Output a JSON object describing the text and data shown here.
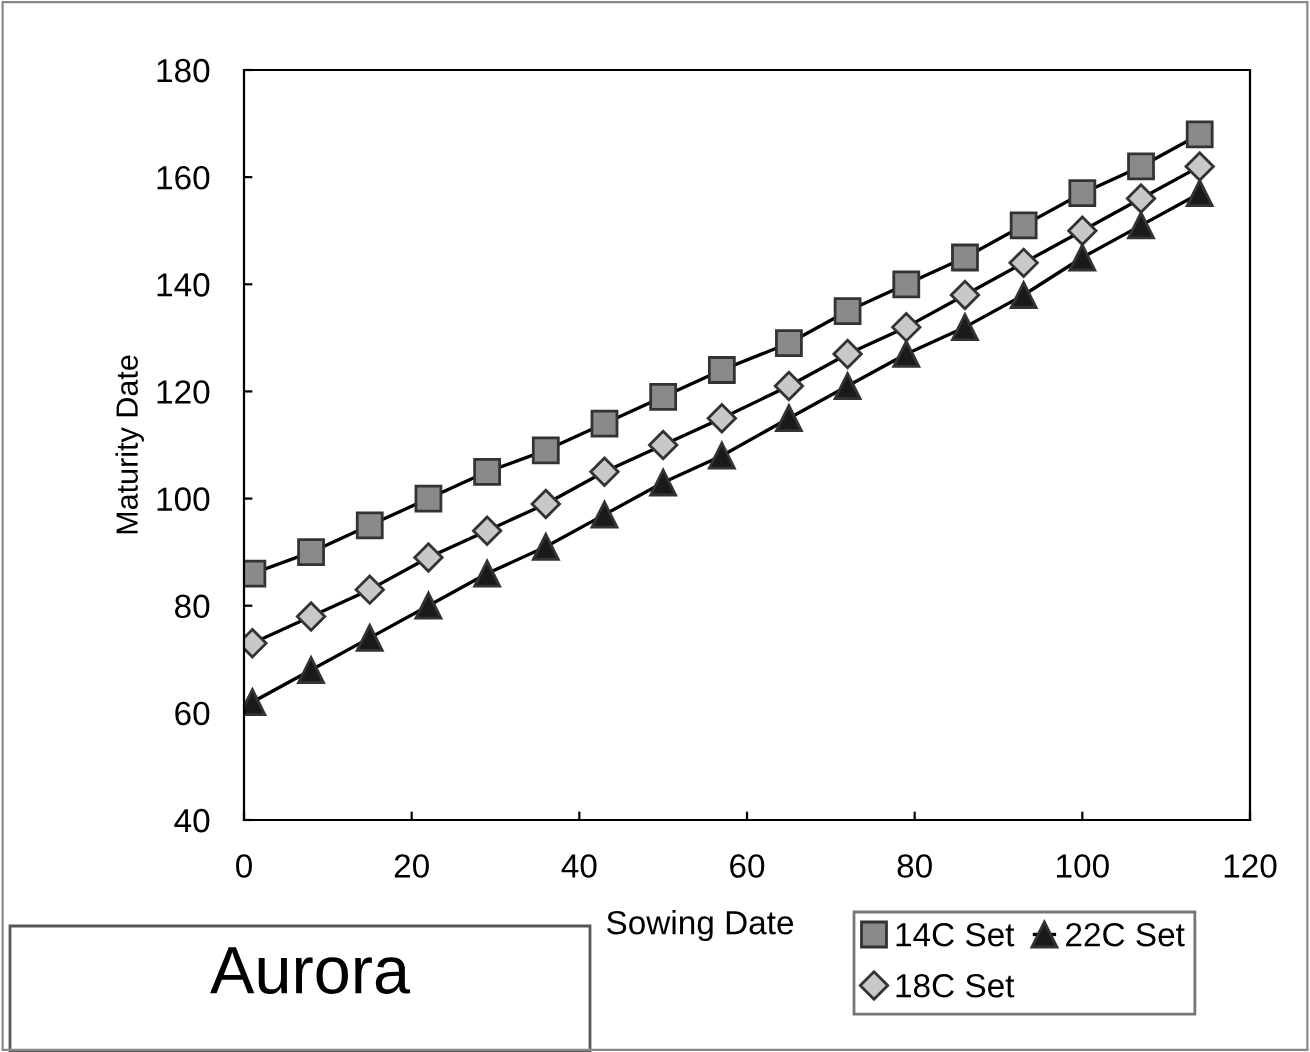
{
  "chart_data": {
    "type": "line",
    "xlabel": "Sowing Date",
    "ylabel": "Maturity Date",
    "x": [
      1,
      8,
      15,
      22,
      29,
      36,
      43,
      50,
      57,
      65,
      72,
      79,
      86,
      93,
      100,
      107,
      114
    ],
    "series": [
      {
        "name": "14C Set",
        "color": "#8a8a8a",
        "marker": "square",
        "values": [
          86,
          90,
          95,
          100,
          105,
          109,
          114,
          119,
          124,
          129,
          135,
          140,
          145,
          151,
          157,
          162,
          168
        ]
      },
      {
        "name": "18C Set",
        "color": "#c8c8c8",
        "marker": "diamond",
        "values": [
          73,
          78,
          83,
          89,
          94,
          99,
          105,
          110,
          115,
          121,
          127,
          132,
          138,
          144,
          150,
          156,
          162
        ]
      },
      {
        "name": "22C Set",
        "color": "#1a1a1a",
        "marker": "triangle",
        "values": [
          62,
          68,
          74,
          80,
          86,
          91,
          97,
          103,
          108,
          115,
          121,
          127,
          132,
          138,
          145,
          151,
          157
        ]
      }
    ],
    "xlim": [
      0,
      120
    ],
    "xticks": [
      0,
      20,
      40,
      60,
      80,
      100,
      120
    ],
    "ylim": [
      40,
      180
    ],
    "yticks": [
      40,
      60,
      80,
      100,
      120,
      140,
      160,
      180
    ],
    "grid": false,
    "legend": "bottom right",
    "line_style": "solid",
    "annotations": [
      "Aurora"
    ]
  }
}
